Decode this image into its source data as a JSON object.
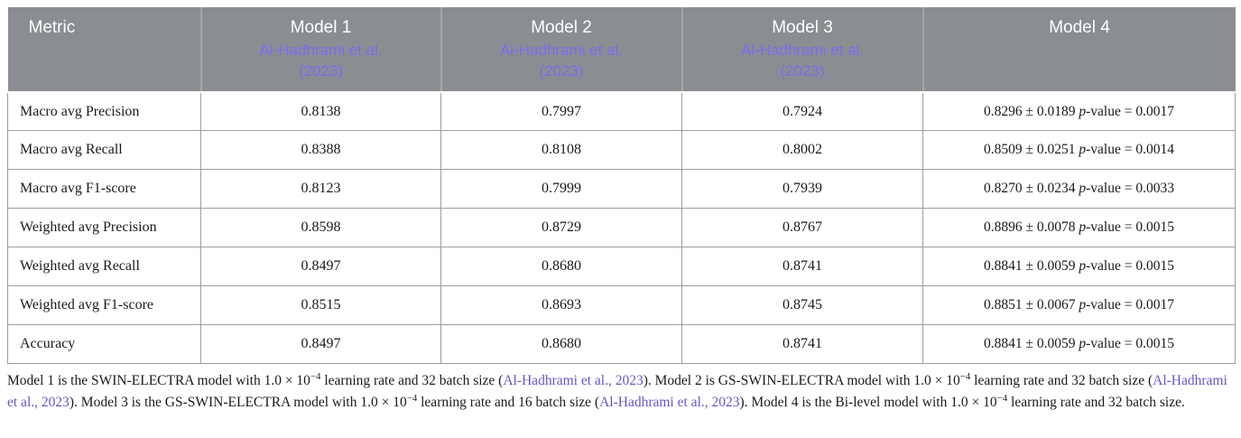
{
  "colors": {
    "header_bg": "#8a8e92",
    "header_text": "#ffffff",
    "citation": "#7a6cf0",
    "link": "#6456c8",
    "border": "#9e9e9e"
  },
  "table": {
    "p_var": "p",
    "p_suffix": "-value = ",
    "plus_minus": "±",
    "columns": [
      {
        "label": "Metric"
      },
      {
        "label": "Model 1",
        "citation_line1": "Al-Hadhrami et al.",
        "citation_line2": "(2023)"
      },
      {
        "label": "Model 2",
        "citation_line1": "Al-Hadhrami et al.",
        "citation_line2": "(2023)"
      },
      {
        "label": "Model 3",
        "citation_line1": "Al-Hadhrami et al.",
        "citation_line2": "(2023)"
      },
      {
        "label": "Model 4"
      }
    ],
    "rows": [
      {
        "metric": "Macro avg Precision",
        "m1": "0.8138",
        "m2": "0.7997",
        "m3": "0.7924",
        "m4": {
          "value": "0.8296 ± 0.0189",
          "p": "0.0017"
        }
      },
      {
        "metric": "Macro avg Recall",
        "m1": "0.8388",
        "m2": "0.8108",
        "m3": "0.8002",
        "m4": {
          "value": "0.8509 ± 0.0251",
          "p": "0.0014"
        }
      },
      {
        "metric": "Macro avg F1-score",
        "m1": "0.8123",
        "m2": "0.7999",
        "m3": "0.7939",
        "m4": {
          "value": "0.8270 ± 0.0234",
          "p": "0.0033"
        }
      },
      {
        "metric": "Weighted avg Precision",
        "m1": "0.8598",
        "m2": "0.8729",
        "m3": "0.8767",
        "m4": {
          "value": "0.8896 ± 0.0078",
          "p": "0.0015"
        }
      },
      {
        "metric": "Weighted avg Recall",
        "m1": "0.8497",
        "m2": "0.8680",
        "m3": "0.8741",
        "m4": {
          "value": "0.8841 ± 0.0059",
          "p": "0.0015"
        }
      },
      {
        "metric": "Weighted avg F1-score",
        "m1": "0.8515",
        "m2": "0.8693",
        "m3": "0.8745",
        "m4": {
          "value": "0.8851 ± 0.0067",
          "p": "0.0017"
        }
      },
      {
        "metric": "Accuracy",
        "m1": "0.8497",
        "m2": "0.8680",
        "m3": "0.8741",
        "m4": {
          "value": "0.8841 ± 0.0059",
          "p": "0.0015"
        }
      }
    ]
  },
  "footnote": {
    "segments": [
      {
        "t": "Model 1 is the SWIN-ELECTRA model with 1.0 × 10"
      },
      {
        "sup": "−4"
      },
      {
        "t": " learning rate and 32 batch size ("
      },
      {
        "link": "Al-Hadhrami et al., 2023"
      },
      {
        "t": "). Model 2 is GS-SWIN-ELECTRA model with 1.0 × 10"
      },
      {
        "sup": "−4"
      },
      {
        "t": " learning rate and 32 batch size ("
      },
      {
        "link": "Al-Hadhrami et al., 2023"
      },
      {
        "t": "). Model 3 is the GS-SWIN-ELECTRA model with 1.0 × 10"
      },
      {
        "sup": "−4"
      },
      {
        "t": " learning rate and 16 batch size ("
      },
      {
        "link": "Al-Hadhrami et al., 2023"
      },
      {
        "t": "). Model 4 is the Bi-level model with 1.0 × 10"
      },
      {
        "sup": "−4"
      },
      {
        "t": " learning rate and 32 batch size."
      }
    ]
  }
}
